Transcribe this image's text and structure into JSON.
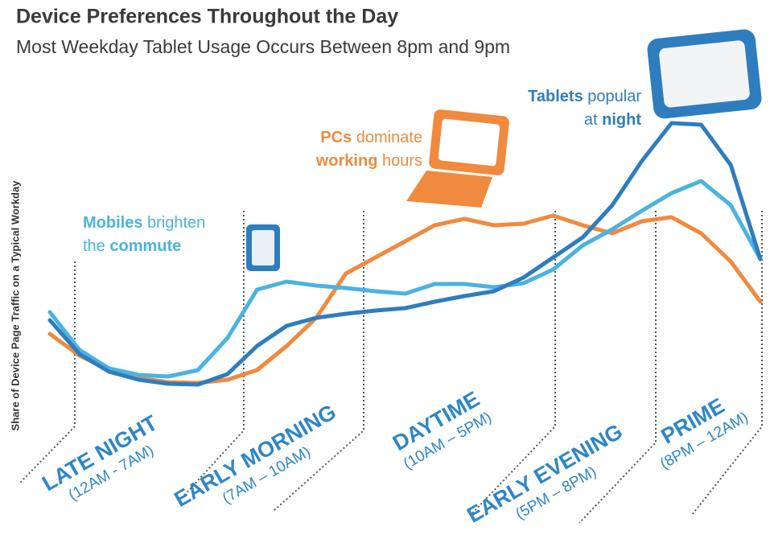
{
  "chart_data": {
    "type": "line",
    "title": "Device Preferences Throughout the Day",
    "subtitle": "Most Weekday Tablet Usage Occurs Between 8pm and 9pm",
    "y_label": "Share of Device Page Traffic on a Typical Workday",
    "categories": [
      null,
      null,
      null,
      null,
      null,
      null,
      null,
      null,
      null,
      null,
      null,
      null,
      null,
      null,
      null,
      null,
      null,
      null,
      null,
      null,
      null,
      null,
      null,
      null,
      null
    ],
    "series": [
      {
        "name": "PCs",
        "color": "#f08a3e",
        "values": [
          18.5,
          15.8,
          14.0,
          13.0,
          12.5,
          12.4,
          12.8,
          14.0,
          17.0,
          20.5,
          26.0,
          28.0,
          30.0,
          32.0,
          32.8,
          32.0,
          32.2,
          33.2,
          32.0,
          31.0,
          32.5,
          33.0,
          31.0,
          27.5,
          22.5
        ]
      },
      {
        "name": "Mobiles",
        "color": "#4ab3e0",
        "values": [
          21.2,
          16.5,
          14.2,
          13.4,
          13.2,
          14.0,
          18.0,
          24.0,
          25.0,
          24.5,
          24.2,
          23.8,
          23.5,
          24.7,
          24.7,
          24.3,
          24.8,
          26.5,
          29.5,
          31.5,
          33.8,
          36.0,
          37.5,
          34.5,
          27.8
        ]
      },
      {
        "name": "Tablets",
        "color": "#2e7dbf",
        "values": [
          20.2,
          16.0,
          13.8,
          12.8,
          12.3,
          12.2,
          13.5,
          17.0,
          19.5,
          20.5,
          21.0,
          21.4,
          21.7,
          22.5,
          23.2,
          23.8,
          25.5,
          28.0,
          30.5,
          34.5,
          40.0,
          44.7,
          44.5,
          39.5,
          27.8
        ]
      }
    ],
    "annotations": [
      {
        "color": "#4ab3e0",
        "lines": [
          [
            {
              "text": "Mobiles",
              "bold": true
            },
            {
              "text": " brighten",
              "bold": false
            }
          ],
          [
            {
              "text": "the ",
              "bold": false
            },
            {
              "text": "commute",
              "bold": true
            }
          ]
        ]
      },
      {
        "color": "#f08a3e",
        "lines": [
          [
            {
              "text": "PCs",
              "bold": true
            },
            {
              "text": " dominate",
              "bold": false
            }
          ],
          [
            {
              "text": "working",
              "bold": true
            },
            {
              "text": " hours",
              "bold": false
            }
          ]
        ]
      },
      {
        "color": "#2e7dbf",
        "lines": [
          [
            {
              "text": "Tablets",
              "bold": true
            },
            {
              "text": " popular",
              "bold": false
            }
          ],
          [
            {
              "text": "at ",
              "bold": false
            },
            {
              "text": "night",
              "bold": true
            }
          ]
        ]
      }
    ],
    "periods": [
      {
        "name": "LATE NIGHT",
        "range": "(12AM - 7AM)"
      },
      {
        "name": "EARLY MORNING",
        "range": "(7AM – 10AM)"
      },
      {
        "name": "DAYTIME",
        "range": "(10AM – 5PM)"
      },
      {
        "name": "EARLY EVENING",
        "range": "(5PM – 8PM)"
      },
      {
        "name": "PRIME",
        "range": "(8PM – 12AM)"
      }
    ]
  }
}
